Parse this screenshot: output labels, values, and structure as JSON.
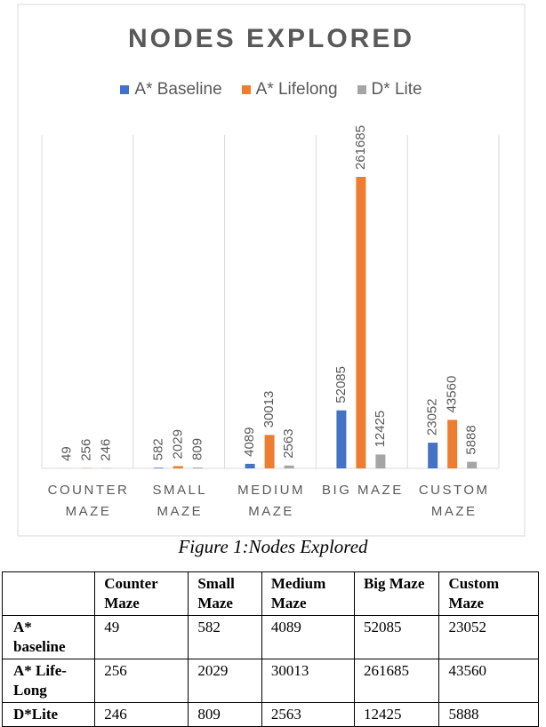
{
  "chart_data": {
    "type": "bar",
    "title": "NODES EXPLORED",
    "categories": [
      "COUNTER MAZE",
      "SMALL MAZE",
      "MEDIUM MAZE",
      "BIG MAZE",
      "CUSTOM MAZE"
    ],
    "series": [
      {
        "name": "A* Baseline",
        "color": "#4472c4",
        "values": [
          49,
          582,
          4089,
          52085,
          23052
        ]
      },
      {
        "name": "A* Lifelong",
        "color": "#ed7d31",
        "values": [
          256,
          2029,
          30013,
          261685,
          43560
        ]
      },
      {
        "name": "D* Lite",
        "color": "#a5a5a5",
        "values": [
          246,
          809,
          2563,
          12425,
          5888
        ]
      }
    ],
    "legend": "top"
  },
  "caption": "Figure 1:Nodes Explored",
  "table": {
    "columns": [
      "Counter Maze",
      "Small Maze",
      "Medium Maze",
      "Big Maze",
      "Custom Maze"
    ],
    "rows": [
      {
        "label": "A* baseline",
        "values": [
          49,
          582,
          4089,
          52085,
          23052
        ]
      },
      {
        "label": "A* Life-Long",
        "values": [
          256,
          2029,
          30013,
          261685,
          43560
        ]
      },
      {
        "label": "D*Lite",
        "values": [
          246,
          809,
          2563,
          12425,
          5888
        ]
      }
    ]
  }
}
